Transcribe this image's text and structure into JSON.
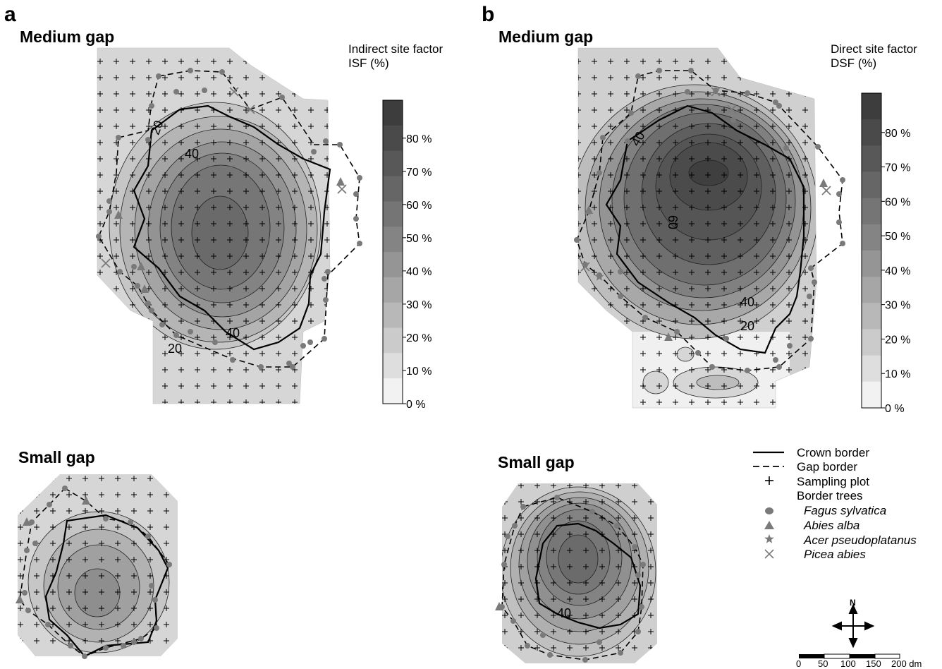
{
  "panels": {
    "a": {
      "letter": "a",
      "medium_title": "Medium gap",
      "small_title": "Small gap",
      "scale_title_line1": "Indirect site factor",
      "scale_title_line2": "ISF (%)",
      "contour_labels": [
        "20",
        "40",
        "40",
        "20"
      ]
    },
    "b": {
      "letter": "b",
      "medium_title": "Medium gap",
      "small_title": "Small gap",
      "scale_title_line1": "Direct site factor",
      "scale_title_line2": "DSF (%)",
      "contour_labels": [
        "40",
        "60",
        "40",
        "20",
        "40"
      ]
    }
  },
  "scale": {
    "ticks": [
      "80 %",
      "70 %",
      "60 %",
      "50 %",
      "40 %",
      "30 %",
      "20 %",
      "10 %",
      "0 %"
    ],
    "shades": [
      "#3d3d3d",
      "#4a4a4a",
      "#585858",
      "#666666",
      "#757575",
      "#848484",
      "#959595",
      "#a6a6a6",
      "#b8b8b8",
      "#cbcbcb",
      "#dedede",
      "#f2f2f2"
    ]
  },
  "legend": {
    "crown_border": "Crown border",
    "gap_border": "Gap border",
    "sampling_plot": "Sampling plot",
    "border_trees": "Border trees",
    "species": [
      "Fagus sylvatica",
      "Abies alba",
      "Acer pseudoplatanus",
      "Picea abies"
    ]
  },
  "north_label": "N",
  "scalebar": {
    "labels": [
      "0",
      "50",
      "100",
      "150",
      "200 dm"
    ]
  }
}
